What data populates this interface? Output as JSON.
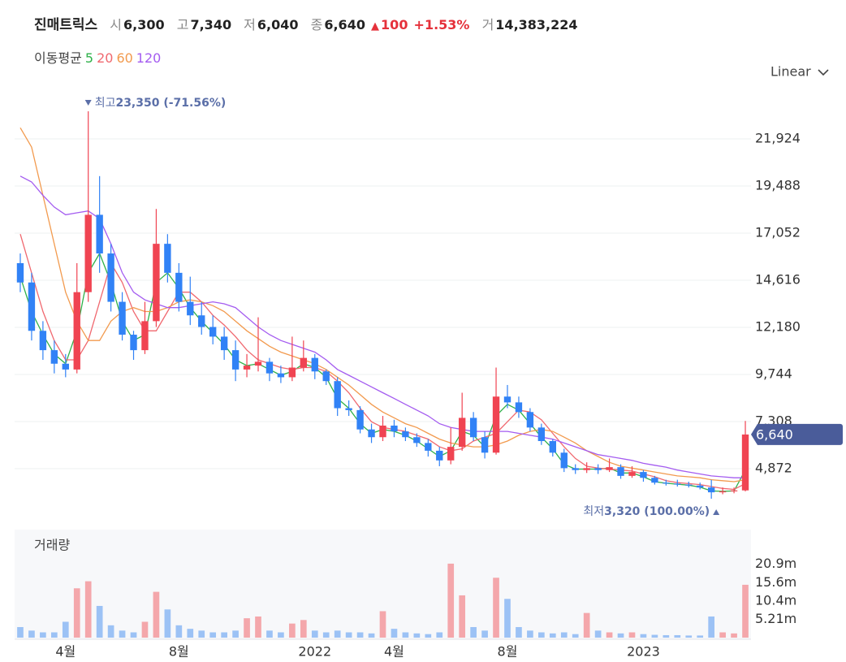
{
  "header": {
    "name": "진매트릭스",
    "open_label": "시",
    "open": "6,300",
    "high_label": "고",
    "high": "7,340",
    "low_label": "저",
    "low": "6,040",
    "close_label": "종",
    "close": "6,640",
    "arrow": "▲",
    "change": "100",
    "change_pct": "+1.53%",
    "volume_label": "거",
    "volume": "14,383,224"
  },
  "chart_data": {
    "type": "candlestick",
    "ma_label": "이동평균",
    "scale_label": "Linear",
    "volume_title": "거래량",
    "high_note": {
      "label": "최고",
      "text": "23,350 (-71.56%)"
    },
    "low_note": {
      "label": "최저",
      "text": "3,320 (100.00%)"
    },
    "last_price": {
      "value": 6640,
      "label": "6,640"
    },
    "up_color": "#f04452",
    "down_color": "#3182f6",
    "volume_up_color": "#f4a7ab",
    "volume_down_color": "#9cc2f5",
    "grid": true,
    "categories": [
      null,
      null,
      null,
      null,
      "4월",
      null,
      null,
      null,
      null,
      null,
      null,
      null,
      null,
      null,
      "8월",
      null,
      null,
      null,
      null,
      null,
      null,
      null,
      null,
      null,
      null,
      null,
      "2022",
      null,
      null,
      null,
      null,
      null,
      null,
      "4월",
      null,
      null,
      null,
      null,
      null,
      null,
      null,
      null,
      null,
      "8월",
      null,
      null,
      null,
      null,
      null,
      null,
      null,
      null,
      null,
      null,
      null,
      "2023",
      null,
      null,
      null,
      null,
      null,
      null,
      null,
      null,
      null
    ],
    "open": [
      15500,
      14500,
      12000,
      11000,
      10300,
      10000,
      14000,
      18000,
      16000,
      13500,
      11800,
      11000,
      12500,
      16500,
      15000,
      13500,
      12800,
      12200,
      11700,
      11000,
      10000,
      10200,
      10400,
      9800,
      9600,
      10100,
      10600,
      9900,
      9400,
      8000,
      7900,
      6900,
      6500,
      7100,
      6800,
      6500,
      6200,
      5800,
      5300,
      6000,
      7500,
      6500,
      5700,
      8600,
      8300,
      7800,
      7000,
      6300,
      5700,
      4900,
      4800,
      4900,
      4800,
      4950,
      4500,
      4700,
      4400,
      4150,
      4100,
      4050,
      4000,
      3900,
      3650,
      3700,
      3750
    ],
    "high": [
      16000,
      15000,
      12500,
      11500,
      10800,
      15500,
      23350,
      20000,
      16500,
      14000,
      12000,
      13500,
      18300,
      17000,
      15500,
      14800,
      13500,
      12800,
      12200,
      11500,
      10800,
      12700,
      10600,
      10200,
      11700,
      11500,
      10800,
      10000,
      9600,
      8400,
      8100,
      7200,
      7600,
      7400,
      7000,
      6700,
      6400,
      6000,
      7000,
      8800,
      7800,
      6800,
      10100,
      9200,
      8600,
      8000,
      7200,
      6400,
      5900,
      5100,
      5200,
      5100,
      5400,
      5100,
      5000,
      4800,
      4500,
      4300,
      4300,
      4200,
      4150,
      4300,
      3900,
      3900,
      7340
    ],
    "low": [
      14000,
      11500,
      10500,
      9800,
      9600,
      9800,
      13500,
      15000,
      13000,
      11500,
      10500,
      10800,
      12200,
      14500,
      13000,
      12300,
      11800,
      11300,
      10500,
      9400,
      9600,
      9900,
      9400,
      9300,
      9400,
      9900,
      9500,
      9200,
      7600,
      7600,
      6700,
      6200,
      6300,
      6500,
      6300,
      6000,
      5500,
      5000,
      5100,
      5800,
      6300,
      5400,
      5600,
      8000,
      7500,
      6800,
      6100,
      5500,
      4700,
      4600,
      4650,
      4600,
      4700,
      4350,
      4400,
      4200,
      4050,
      4000,
      3950,
      3900,
      3800,
      3320,
      3550,
      3600,
      3700
    ],
    "close": [
      14500,
      12000,
      11000,
      10300,
      10000,
      14000,
      18000,
      16000,
      13500,
      11800,
      11000,
      12500,
      16500,
      15000,
      13500,
      12800,
      12200,
      11700,
      11000,
      10000,
      10200,
      10400,
      9800,
      9600,
      10100,
      10600,
      9900,
      9400,
      8000,
      7900,
      6900,
      6500,
      7100,
      6800,
      6500,
      6200,
      5800,
      5300,
      6000,
      7500,
      6500,
      5700,
      8600,
      8300,
      7800,
      7000,
      6300,
      5700,
      4900,
      4800,
      4900,
      4800,
      4950,
      4500,
      4700,
      4400,
      4150,
      4100,
      4050,
      4000,
      3900,
      3650,
      3700,
      3750,
      6640
    ],
    "volume": [
      3000000,
      2000000,
      1500000,
      1500000,
      4500000,
      14000000,
      16000000,
      9000000,
      3500000,
      2000000,
      1500000,
      4500000,
      13000000,
      8000000,
      3500000,
      2500000,
      2000000,
      1500000,
      1500000,
      2000000,
      5500000,
      6000000,
      2000000,
      1500000,
      4000000,
      5000000,
      2000000,
      1500000,
      2000000,
      1500000,
      1500000,
      1200000,
      7500000,
      2500000,
      1500000,
      1200000,
      1000000,
      1500000,
      21000000,
      12000000,
      3000000,
      2000000,
      17000000,
      11000000,
      3000000,
      2000000,
      1500000,
      1200000,
      1500000,
      1000000,
      7000000,
      2000000,
      1500000,
      1200000,
      1500000,
      1000000,
      800000,
      700000,
      700000,
      600000,
      600000,
      6000000,
      1500000,
      1200000,
      15000000
    ],
    "series": [
      {
        "name": "5",
        "color": "#2fb14a",
        "values": [
          14800,
          13000,
          11800,
          10800,
          10300,
          12000,
          15000,
          16000,
          14500,
          12500,
          11500,
          11800,
          14500,
          15000,
          14200,
          13200,
          12500,
          11900,
          11300,
          10500,
          10200,
          10300,
          10000,
          9700,
          9900,
          10300,
          10100,
          9600,
          8500,
          8000,
          7200,
          6700,
          6900,
          6800,
          6600,
          6300,
          5900,
          5500,
          5800,
          6800,
          6600,
          6000,
          7600,
          8200,
          7900,
          7200,
          6500,
          5900,
          5100,
          4850,
          4850,
          4850,
          4900,
          4650,
          4650,
          4450,
          4200,
          4120,
          4070,
          4020,
          3920,
          3720,
          3700,
          3720,
          4800
        ]
      },
      {
        "name": "20",
        "color": "#f0686f",
        "values": [
          17000,
          15000,
          13000,
          11500,
          10500,
          10500,
          11500,
          13500,
          15500,
          14500,
          13000,
          12000,
          12000,
          13000,
          14000,
          14000,
          13500,
          12800,
          12300,
          11700,
          11000,
          10500,
          10300,
          10100,
          10000,
          10100,
          10100,
          9900,
          9400,
          8800,
          8000,
          7300,
          7000,
          6900,
          6800,
          6600,
          6400,
          6000,
          5800,
          5900,
          6300,
          6500,
          6700,
          7300,
          7900,
          7800,
          7400,
          6700,
          6000,
          5400,
          5000,
          4900,
          4850,
          4800,
          4750,
          4600,
          4450,
          4250,
          4150,
          4100,
          4050,
          3950,
          3850,
          3800,
          4100
        ]
      },
      {
        "name": "60",
        "color": "#f29a4e",
        "values": [
          22500,
          21500,
          19000,
          16500,
          14000,
          12500,
          11500,
          11500,
          12500,
          13000,
          13200,
          13000,
          13000,
          13200,
          13500,
          13600,
          13500,
          13300,
          13000,
          12500,
          12000,
          11600,
          11200,
          10900,
          10700,
          10500,
          10300,
          10000,
          9600,
          9200,
          8700,
          8200,
          7800,
          7500,
          7200,
          7000,
          6700,
          6400,
          6200,
          6100,
          6000,
          6000,
          6100,
          6300,
          6600,
          6800,
          6900,
          6800,
          6500,
          6200,
          5800,
          5500,
          5200,
          5000,
          4900,
          4800,
          4700,
          4600,
          4500,
          4450,
          4400,
          4300,
          4250,
          4200,
          4300
        ]
      },
      {
        "name": "120",
        "color": "#a45cf0",
        "values": [
          20000,
          19700,
          19000,
          18400,
          18000,
          18100,
          18200,
          17800,
          16500,
          15000,
          14000,
          13600,
          13400,
          13200,
          13200,
          13300,
          13400,
          13500,
          13400,
          13200,
          12700,
          12200,
          11800,
          11500,
          11300,
          11100,
          10900,
          10500,
          10000,
          9700,
          9400,
          9100,
          8800,
          8500,
          8200,
          7900,
          7600,
          7200,
          7000,
          6900,
          6800,
          6800,
          6800,
          6800,
          6700,
          6600,
          6500,
          6400,
          6200,
          6000,
          5800,
          5600,
          5500,
          5400,
          5300,
          5150,
          5050,
          4950,
          4800,
          4700,
          4600,
          4500,
          4450,
          4400,
          4400
        ]
      }
    ],
    "ylim": [
      2016,
      23436
    ],
    "yticks": [
      {
        "value": 4872,
        "label": "4,872"
      },
      {
        "value": 7308,
        "label": "7,308"
      },
      {
        "value": 9744,
        "label": "9,744"
      },
      {
        "value": 12180,
        "label": "12,180"
      },
      {
        "value": 14616,
        "label": "14,616"
      },
      {
        "value": 17052,
        "label": "17,052"
      },
      {
        "value": 19488,
        "label": "19,488"
      },
      {
        "value": 21924,
        "label": "21,924"
      }
    ],
    "vlim": [
      0,
      30660000
    ],
    "vticks": [
      {
        "value": 5210000,
        "label": "5.21m"
      },
      {
        "value": 10400000,
        "label": "10.4m"
      },
      {
        "value": 15600000,
        "label": "15.6m"
      },
      {
        "value": 20900000,
        "label": "20.9m"
      }
    ]
  }
}
